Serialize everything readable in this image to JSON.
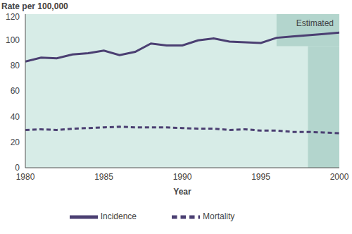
{
  "chart_data": {
    "type": "line",
    "y_label": "Rate per 100,000",
    "x_label": "Year",
    "x": [
      1980,
      1981,
      1982,
      1983,
      1984,
      1985,
      1986,
      1987,
      1988,
      1989,
      1990,
      1991,
      1992,
      1993,
      1994,
      1995,
      1996,
      1997,
      1998,
      1999,
      2000
    ],
    "series": [
      {
        "name": "Incidence",
        "color": "#4b3f72",
        "line_style": "solid",
        "values": [
          83,
          86,
          85.5,
          88.5,
          89.5,
          91.5,
          88,
          90.5,
          97,
          95.5,
          95.5,
          99.5,
          101,
          98.5,
          98,
          97.5,
          101.5,
          102.5,
          103.5,
          104.5,
          105.5
        ]
      },
      {
        "name": "Mortality",
        "color": "#4b3f72",
        "line_style": "dashed",
        "values": [
          29.5,
          30,
          29.5,
          30.5,
          31,
          31.5,
          32,
          31.5,
          31.5,
          31.5,
          31,
          30.5,
          30.5,
          29.5,
          30,
          29,
          29,
          28,
          28,
          27.5,
          27
        ]
      }
    ],
    "xlim": [
      1980,
      2000
    ],
    "xticks": [
      1980,
      1985,
      1990,
      1995,
      2000
    ],
    "ylim": [
      0,
      120
    ],
    "yticks": [
      0,
      20,
      40,
      60,
      80,
      100,
      120
    ],
    "grid": false,
    "legend": "bottom",
    "annotations": [
      {
        "text": "Estimated",
        "x": [
          1996,
          2000
        ],
        "y": [
          95,
          120
        ]
      }
    ],
    "shaded_regions": [
      {
        "x": [
          1998,
          2000
        ],
        "y": [
          0,
          95
        ]
      }
    ]
  }
}
